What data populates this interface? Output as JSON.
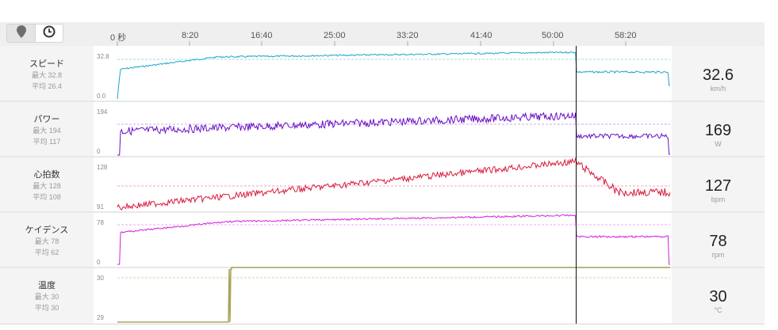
{
  "toolbar": {
    "map_icon": "location-pin-icon",
    "time_icon": "clock-icon"
  },
  "time_axis": [
    "0 秒",
    "8:20",
    "16:40",
    "25:00",
    "33:20",
    "41:40",
    "50:00",
    "58:20"
  ],
  "metrics": [
    {
      "key": "speed",
      "name": "スピード",
      "max_label": "最大 32.8",
      "avg_label": "平均 26.4",
      "y_top_label": "32.8",
      "y_bottom_label": "0.0",
      "current_value": "32.6",
      "unit": "km/h",
      "color": "#1aa7c9"
    },
    {
      "key": "power",
      "name": "パワー",
      "max_label": "最大 194",
      "avg_label": "平均 117",
      "y_top_label": "194",
      "y_bottom_label": "0",
      "current_value": "169",
      "unit": "W",
      "color": "#6a0fc6"
    },
    {
      "key": "heart_rate",
      "name": "心拍数",
      "max_label": "最大 128",
      "avg_label": "平均 108",
      "y_top_label": "128",
      "y_bottom_label": "91",
      "current_value": "127",
      "unit": "bpm",
      "color": "#d81b3c"
    },
    {
      "key": "cadence",
      "name": "ケイデンス",
      "max_label": "最大 78",
      "avg_label": "平均 62",
      "y_top_label": "78",
      "y_bottom_label": "0",
      "current_value": "78",
      "unit": "rpm",
      "color": "#d21ed8"
    },
    {
      "key": "temperature",
      "name": "温度",
      "max_label": "最大 30",
      "avg_label": "平均 30",
      "y_top_label": "30",
      "y_bottom_label": "29",
      "current_value": "30",
      "unit": "°C",
      "color": "#a9a55a"
    }
  ],
  "cursor_fraction": 0.83
}
